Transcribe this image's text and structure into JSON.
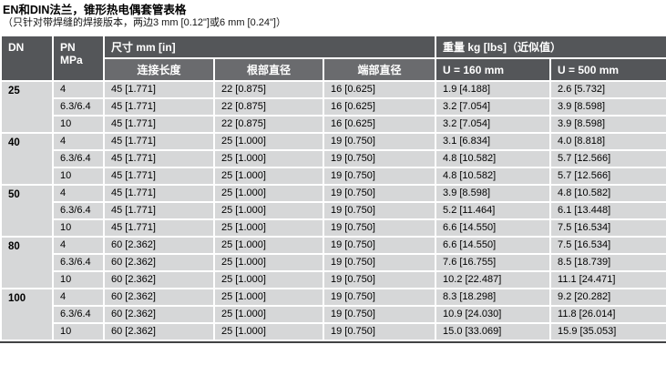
{
  "page": {
    "title": "EN和DIN法兰，锥形热电偶套管表格",
    "subtitle": "（只针对带焊缝的焊接版本，两边3 mm [0.12\"]或6 mm [0.24\"]）"
  },
  "table": {
    "headers": {
      "dn": "DN",
      "pn": "PN",
      "pn_unit": "MPa",
      "dim_group": "尺寸 mm [in]",
      "dim_cols": [
        "连接长度",
        "根部直径",
        "端部直径"
      ],
      "weight_group": "重量 kg [lbs]（近似值）",
      "weight_cols": [
        "U = 160 mm",
        "U = 500 mm"
      ]
    },
    "groups": [
      {
        "dn": "25",
        "rows": [
          {
            "pn": "4",
            "connection_length": "45 [1.771]",
            "root_diameter": "22 [0.875]",
            "tip_diameter": "16 [0.625]",
            "weight_u160": "1.9 [4.188]",
            "weight_u500": "2.6 [5.732]"
          },
          {
            "pn": "6.3/6.4",
            "connection_length": "45 [1.771]",
            "root_diameter": "22 [0.875]",
            "tip_diameter": "16 [0.625]",
            "weight_u160": "3.2 [7.054]",
            "weight_u500": "3.9 [8.598]"
          },
          {
            "pn": "10",
            "connection_length": "45 [1.771]",
            "root_diameter": "22 [0.875]",
            "tip_diameter": "16 [0.625]",
            "weight_u160": "3.2 [7.054]",
            "weight_u500": "3.9 [8.598]"
          }
        ]
      },
      {
        "dn": "40",
        "rows": [
          {
            "pn": "4",
            "connection_length": "45 [1.771]",
            "root_diameter": "25 [1.000]",
            "tip_diameter": "19 [0.750]",
            "weight_u160": "3.1 [6.834]",
            "weight_u500": "4.0 [8.818]"
          },
          {
            "pn": "6.3/6.4",
            "connection_length": "45 [1.771]",
            "root_diameter": "25 [1.000]",
            "tip_diameter": "19 [0.750]",
            "weight_u160": "4.8 [10.582]",
            "weight_u500": "5.7 [12.566]"
          },
          {
            "pn": "10",
            "connection_length": "45 [1.771]",
            "root_diameter": "25 [1.000]",
            "tip_diameter": "19 [0.750]",
            "weight_u160": "4.8 [10.582]",
            "weight_u500": "5.7 [12.566]"
          }
        ]
      },
      {
        "dn": "50",
        "rows": [
          {
            "pn": "4",
            "connection_length": "45 [1.771]",
            "root_diameter": "25 [1.000]",
            "tip_diameter": "19 [0.750]",
            "weight_u160": "3.9 [8.598]",
            "weight_u500": "4.8 [10.582]"
          },
          {
            "pn": "6.3/6.4",
            "connection_length": "45 [1.771]",
            "root_diameter": "25 [1.000]",
            "tip_diameter": "19 [0.750]",
            "weight_u160": "5.2 [11.464]",
            "weight_u500": "6.1 [13.448]"
          },
          {
            "pn": "10",
            "connection_length": "45 [1.771]",
            "root_diameter": "25 [1.000]",
            "tip_diameter": "19 [0.750]",
            "weight_u160": "6.6 [14.550]",
            "weight_u500": "7.5 [16.534]"
          }
        ]
      },
      {
        "dn": "80",
        "rows": [
          {
            "pn": "4",
            "connection_length": "60 [2.362]",
            "root_diameter": "25 [1.000]",
            "tip_diameter": "19 [0.750]",
            "weight_u160": "6.6 [14.550]",
            "weight_u500": "7.5 [16.534]"
          },
          {
            "pn": "6.3/6.4",
            "connection_length": "60 [2.362]",
            "root_diameter": "25 [1.000]",
            "tip_diameter": "19 [0.750]",
            "weight_u160": "7.6 [16.755]",
            "weight_u500": "8.5 [18.739]"
          },
          {
            "pn": "10",
            "connection_length": "60 [2.362]",
            "root_diameter": "25 [1.000]",
            "tip_diameter": "19 [0.750]",
            "weight_u160": "10.2 [22.487]",
            "weight_u500": "11.1 [24.471]"
          }
        ]
      },
      {
        "dn": "100",
        "rows": [
          {
            "pn": "4",
            "connection_length": "60 [2.362]",
            "root_diameter": "25 [1.000]",
            "tip_diameter": "19 [0.750]",
            "weight_u160": "8.3 [18.298]",
            "weight_u500": "9.2 [20.282]"
          },
          {
            "pn": "6.3/6.4",
            "connection_length": "60 [2.362]",
            "root_diameter": "25 [1.000]",
            "tip_diameter": "19 [0.750]",
            "weight_u160": "10.9 [24.030]",
            "weight_u500": "11.8 [26.014]"
          },
          {
            "pn": "10",
            "connection_length": "60 [2.362]",
            "root_diameter": "25 [1.000]",
            "tip_diameter": "19 [0.750]",
            "weight_u160": "15.0 [33.069]",
            "weight_u500": "15.9 [35.053]"
          }
        ]
      }
    ]
  },
  "colors": {
    "header_dark": "#545659",
    "header_mid": "#6a6b6e",
    "row_bg": "#d6d7d8",
    "separator": "#ffffff",
    "bottom_border": "#414244",
    "header_text": "#ffffff",
    "text_dark": "#000000"
  }
}
